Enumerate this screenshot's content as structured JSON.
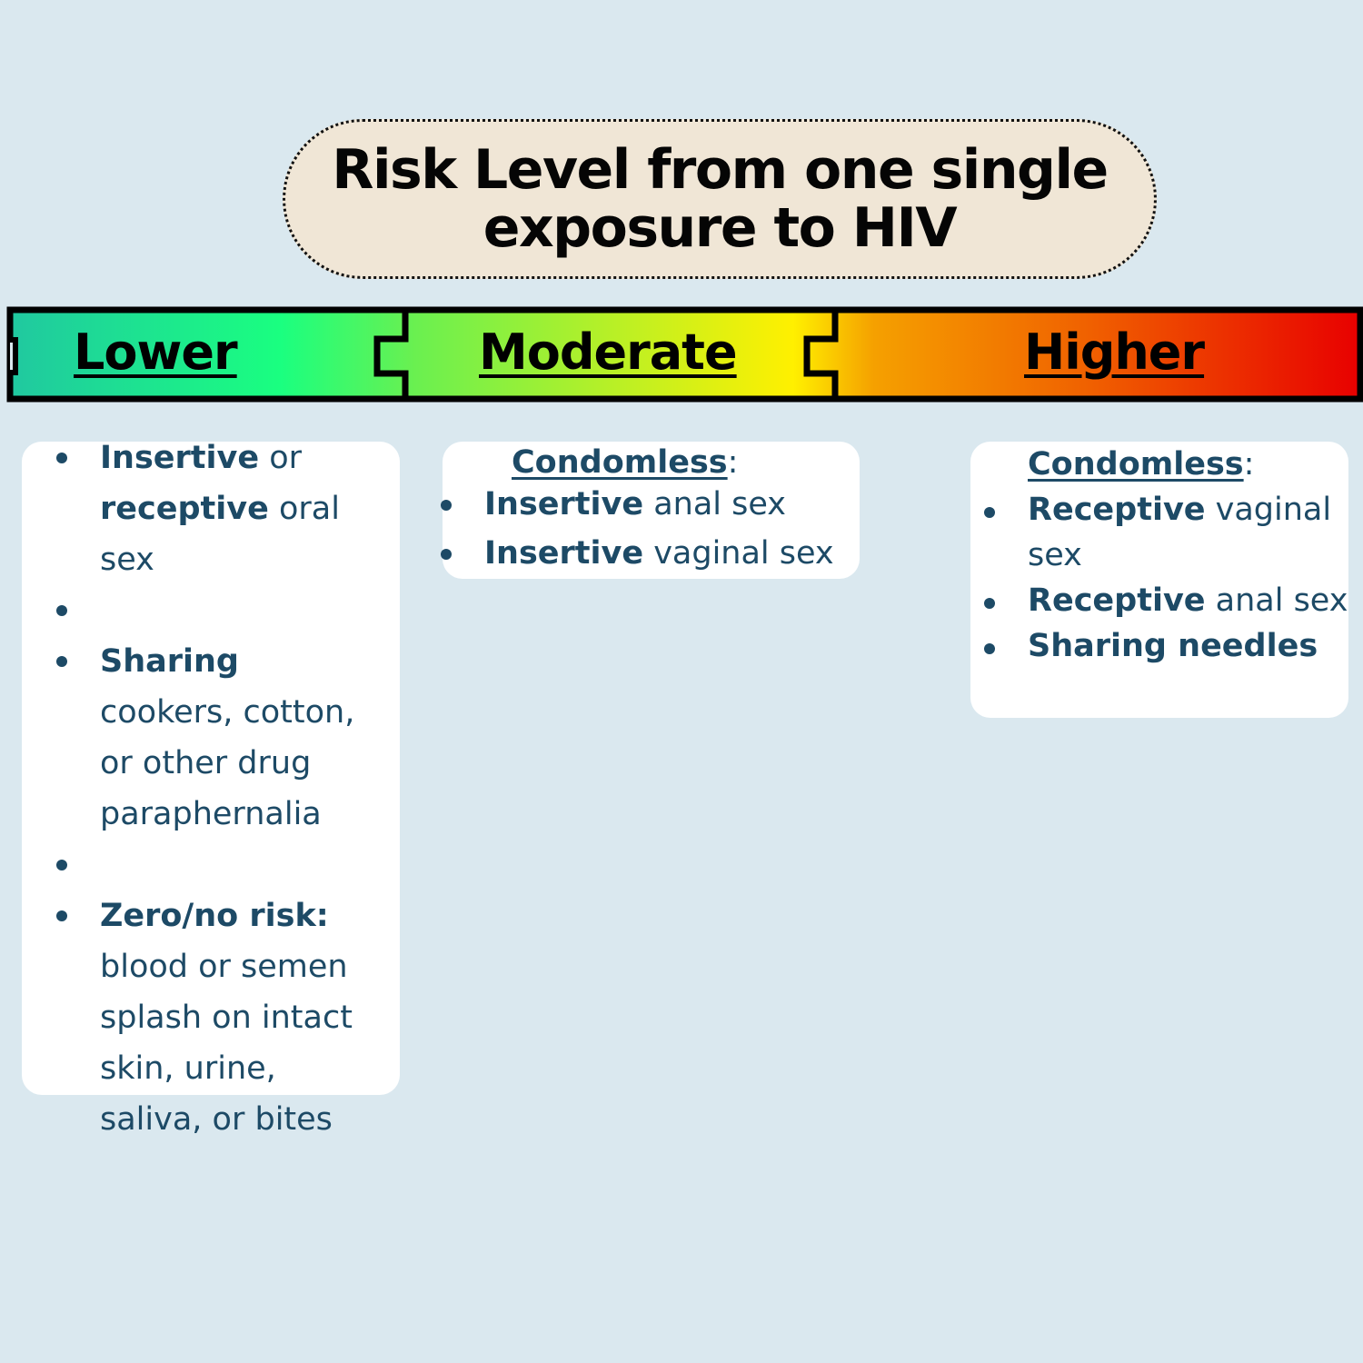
{
  "title": {
    "line1": "Risk Level from one single",
    "line2": "exposure to HIV"
  },
  "scale": {
    "levels": [
      "Lower",
      "Moderate",
      "Higher"
    ],
    "colors": [
      "#20c8a0",
      "#1aff80",
      "#6af050",
      "#fff000",
      "#f5a000",
      "#f06000",
      "#e80000"
    ]
  },
  "lower": {
    "items": [
      {
        "bold1": "Insertive",
        "text1": " or ",
        "bold2": "receptive",
        "text2": " oral sex"
      },
      {
        "bold": "Sharing",
        "text": " cookers, cotton, or other drug paraphernalia"
      },
      {
        "bold": "Zero/no risk:",
        "text": " blood or semen splash on intact skin, urine, saliva, or bites"
      }
    ]
  },
  "moderate": {
    "heading": "Condomless",
    "colon": ":",
    "items": [
      {
        "bold": "Insertive",
        "text": " anal sex"
      },
      {
        "bold": "Insertive",
        "text": " vaginal sex"
      }
    ]
  },
  "higher": {
    "heading": "Condomless",
    "colon": ":",
    "items": [
      {
        "bold": "Receptive",
        "text": " vaginal sex"
      },
      {
        "bold": "Receptive",
        "text": " anal sex"
      },
      {
        "bold": "Sharing needles",
        "text": ""
      }
    ]
  }
}
